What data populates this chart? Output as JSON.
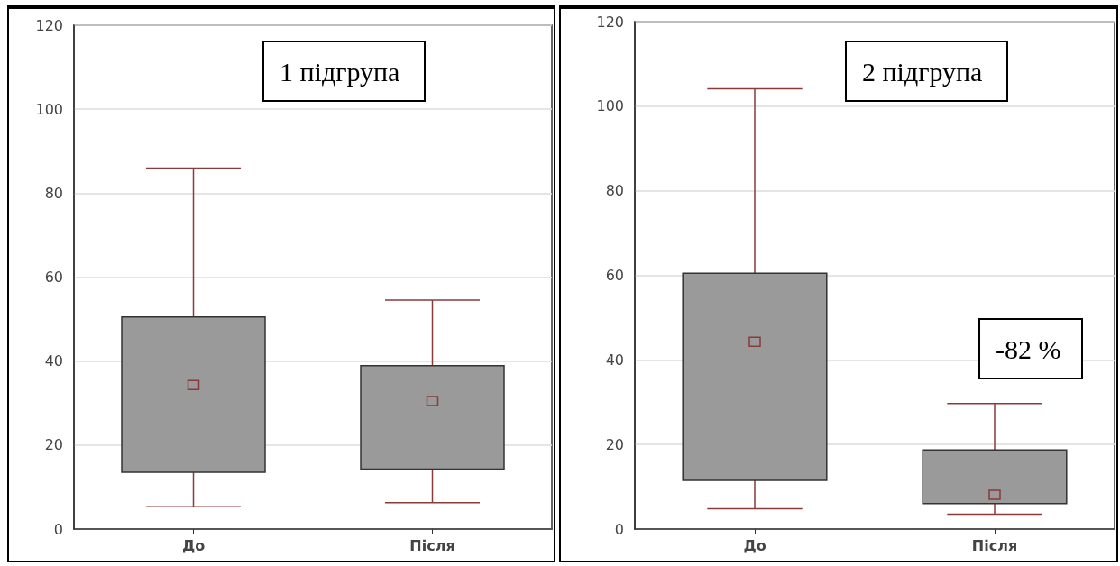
{
  "chart_data": [
    {
      "type": "box",
      "title": "1 підгрупа",
      "categories": [
        "До",
        "Після"
      ],
      "series": [
        {
          "color": "#9a9a9a",
          "boxes": [
            {
              "low": 5.3,
              "q1": 13.5,
              "median": 34.3,
              "q3": 50.5,
              "high": 86
            },
            {
              "low": 6.3,
              "q1": 14.3,
              "median": 30.5,
              "q3": 38.9,
              "high": 54.5
            }
          ]
        }
      ],
      "ylim": [
        0,
        120
      ],
      "yticks": [
        0,
        20,
        40,
        60,
        80,
        100,
        120
      ],
      "grid": "y"
    },
    {
      "type": "box",
      "title": "2 підгрупа",
      "annotations": [
        "-82 %"
      ],
      "categories": [
        "До",
        "Після"
      ],
      "series": [
        {
          "color": "#9a9a9a",
          "boxes": [
            {
              "low": 4.8,
              "q1": 11.5,
              "median": 44.3,
              "q3": 60.5,
              "high": 104.1
            },
            {
              "low": 3.5,
              "q1": 6,
              "median": 8.1,
              "q3": 18.7,
              "high": 29.7
            }
          ]
        }
      ],
      "ylim": [
        0,
        120
      ],
      "yticks": [
        0,
        20,
        40,
        60,
        80,
        100,
        120
      ],
      "grid": "y"
    }
  ]
}
